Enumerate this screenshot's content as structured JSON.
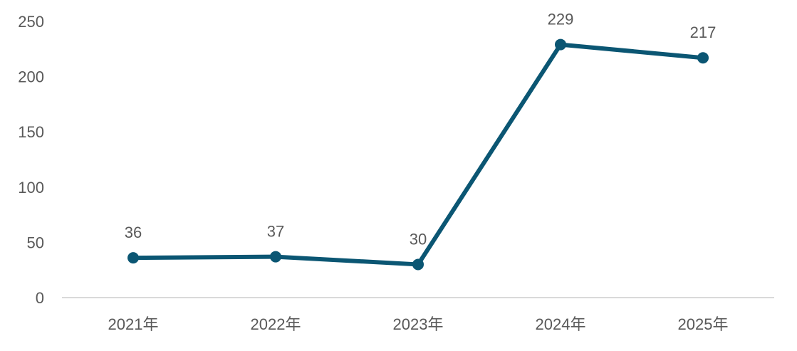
{
  "chart_data": {
    "type": "line",
    "categories": [
      "2021年",
      "2022年",
      "2023年",
      "2024年",
      "2025年"
    ],
    "values": [
      36,
      37,
      30,
      229,
      217
    ],
    "data_labels": [
      "36",
      "37",
      "30",
      "229",
      "217"
    ],
    "title": "",
    "xlabel": "",
    "ylabel": "",
    "ylim": [
      0,
      250
    ],
    "yticks": [
      "0",
      "50",
      "100",
      "150",
      "200",
      "250"
    ],
    "grid": false,
    "legend": "none",
    "line_color": "#0b5673",
    "axis_color": "#d9d9d9",
    "text_color": "#595959"
  }
}
